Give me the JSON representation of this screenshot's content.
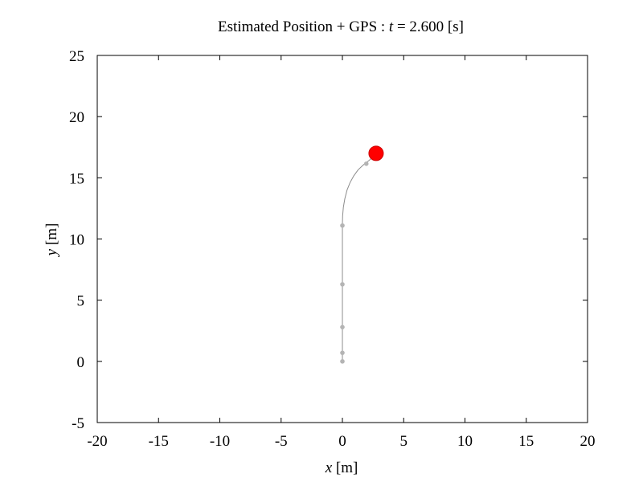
{
  "chart_data": {
    "type": "line",
    "title_prefix": "Estimated Position + GPS : ",
    "title_var": "t",
    "title_suffix": " = 2.600 [s]",
    "xlabel_var": "x",
    "xlabel_unit": "[m]",
    "ylabel_var": "y",
    "ylabel_unit": "[m]",
    "xlim": [
      -20,
      20
    ],
    "ylim": [
      -5,
      25
    ],
    "xticks": [
      -20,
      -15,
      -10,
      -5,
      0,
      5,
      10,
      15,
      20
    ],
    "yticks": [
      -5,
      0,
      5,
      10,
      15,
      20,
      25
    ],
    "grid": false,
    "legend": "none",
    "series": [
      {
        "role": "estimated-trajectory",
        "color": "#8c8c8c",
        "x": [
          0,
          0,
          0,
          0,
          0,
          0.02,
          0.08,
          0.2,
          0.38,
          0.62,
          0.92,
          1.28,
          1.7,
          2.15,
          2.5,
          2.75
        ],
        "y": [
          0,
          2.8,
          6.2,
          9.5,
          11.2,
          11.9,
          12.6,
          13.3,
          14.0,
          14.6,
          15.15,
          15.65,
          16.05,
          16.4,
          16.7,
          17.0
        ]
      },
      {
        "role": "gps-samples",
        "color": "#b4b4b4",
        "x": [
          0,
          0,
          0,
          0,
          0,
          1.95
        ],
        "y": [
          0,
          0.7,
          2.8,
          6.3,
          11.1,
          16.15
        ]
      },
      {
        "role": "current-position",
        "color": "#ff0000",
        "x": [
          2.75
        ],
        "y": [
          17.0
        ]
      }
    ]
  }
}
